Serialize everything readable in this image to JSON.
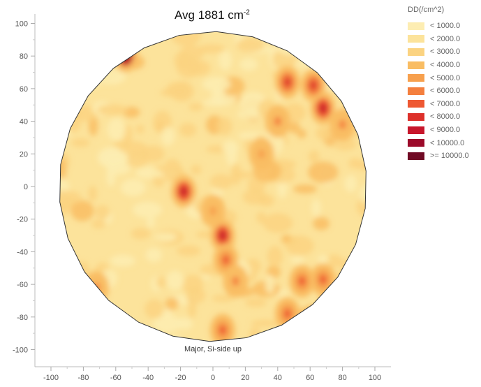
{
  "chart_data": {
    "type": "heatmap",
    "title": "Avg 1881 cm",
    "title_superscript": "-2",
    "annotation": "Major, Si-side up",
    "xlim": [
      -100,
      100
    ],
    "ylim": [
      -100,
      100
    ],
    "xticks": [
      -100,
      -80,
      -60,
      -40,
      -20,
      0,
      20,
      40,
      60,
      80,
      100
    ],
    "yticks": [
      100,
      80,
      60,
      40,
      20,
      0,
      -20,
      -40,
      -60,
      -80,
      -100
    ],
    "grid": false,
    "wafer_radius": 95,
    "average": 1881,
    "legend": {
      "title": "DD(/cm^2)",
      "placement": "right",
      "items": [
        {
          "label": "< 1000.0",
          "color": "#fdedb2"
        },
        {
          "label": "< 2000.0",
          "color": "#fce39b"
        },
        {
          "label": "< 3000.0",
          "color": "#fbd381"
        },
        {
          "label": "< 4000.0",
          "color": "#f9bd63"
        },
        {
          "label": "< 5000.0",
          "color": "#f7a04d"
        },
        {
          "label": "< 6000.0",
          "color": "#f47f3e"
        },
        {
          "label": "< 7000.0",
          "color": "#ee5832"
        },
        {
          "label": "< 8000.0",
          "color": "#dd302a"
        },
        {
          "label": "< 9000.0",
          "color": "#c7162b"
        },
        {
          "label": "< 10000.0",
          "color": "#9c0a2a"
        },
        {
          "label": ">= 10000.0",
          "color": "#700a24"
        }
      ]
    },
    "hotspots": [
      {
        "x": -54,
        "y": 80,
        "value": 10000
      },
      {
        "x": 46,
        "y": 64,
        "value": 7000
      },
      {
        "x": 62,
        "y": 62,
        "value": 7000
      },
      {
        "x": 68,
        "y": 48,
        "value": 8000
      },
      {
        "x": 40,
        "y": 40,
        "value": 5000
      },
      {
        "x": 30,
        "y": 20,
        "value": 4500
      },
      {
        "x": -18,
        "y": -3,
        "value": 8000
      },
      {
        "x": 6,
        "y": -30,
        "value": 8000
      },
      {
        "x": 8,
        "y": -45,
        "value": 6000
      },
      {
        "x": 14,
        "y": -58,
        "value": 5500
      },
      {
        "x": 55,
        "y": -58,
        "value": 6500
      },
      {
        "x": 68,
        "y": -57,
        "value": 6000
      },
      {
        "x": 46,
        "y": -78,
        "value": 6000
      },
      {
        "x": 6,
        "y": -88,
        "value": 6000
      },
      {
        "x": -72,
        "y": -62,
        "value": 5000
      },
      {
        "x": 80,
        "y": 38,
        "value": 5000
      },
      {
        "x": 0,
        "y": -15,
        "value": 4500
      }
    ]
  }
}
